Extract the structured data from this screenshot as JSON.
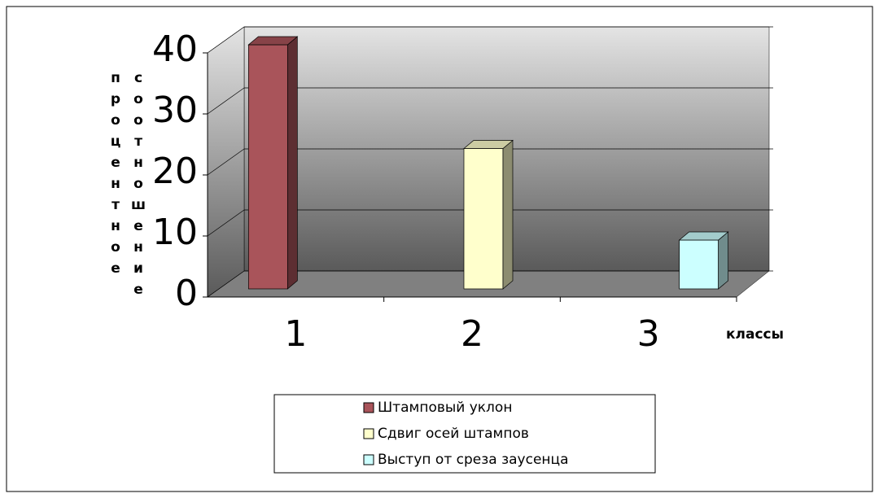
{
  "chart_data": {
    "type": "bar3d",
    "y_label": "процентное соотношение",
    "x_label": "классы",
    "categories": [
      "1",
      "2",
      "3"
    ],
    "series": [
      {
        "name": "Штамповый уклон",
        "color": "#a9545a",
        "values": [
          40,
          null,
          null
        ]
      },
      {
        "name": "Сдвиг осей штампов",
        "color": "#ffffcc",
        "values": [
          null,
          23,
          null
        ]
      },
      {
        "name": "Выступ от среза заусенца",
        "color": "#ccffff",
        "values": [
          null,
          null,
          8
        ]
      }
    ],
    "ylim": [
      0,
      40
    ],
    "yticks": [
      0,
      10,
      20,
      30,
      40
    ],
    "grid": true
  }
}
